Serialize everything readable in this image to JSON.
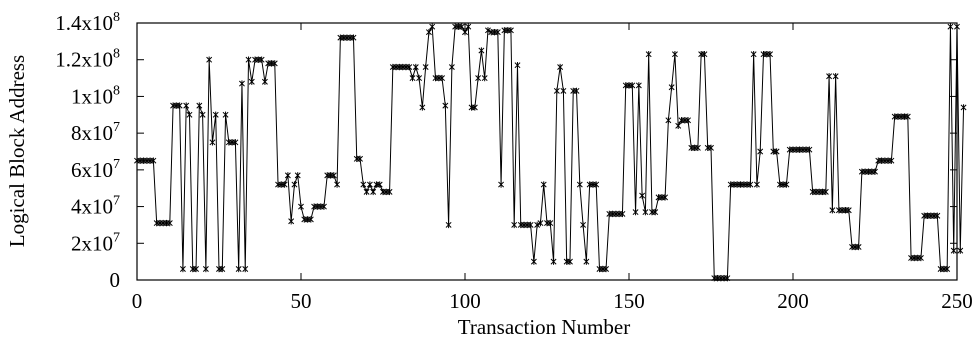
{
  "chart_data": {
    "type": "line",
    "title": "",
    "xlabel": "Transaction Number",
    "ylabel": "Logical Block Address",
    "xlim": [
      0,
      250
    ],
    "ylim": [
      0,
      140000000
    ],
    "grid": false,
    "legend": "none",
    "marker": "asterisk",
    "colors": {
      "line": "#000000",
      "marker": "#000000",
      "frame": "#000000"
    },
    "x_ticks": [
      {
        "value": 0,
        "label": "0"
      },
      {
        "value": 50,
        "label": "50"
      },
      {
        "value": 100,
        "label": "100"
      },
      {
        "value": 150,
        "label": "150"
      },
      {
        "value": 200,
        "label": "200"
      },
      {
        "value": 250,
        "label": "250"
      }
    ],
    "y_ticks": [
      {
        "value": 0,
        "label": "0",
        "base": "0",
        "exp": ""
      },
      {
        "value": 20000000,
        "label": "2x10^7",
        "base": "2x10",
        "exp": "7"
      },
      {
        "value": 40000000,
        "label": "4x10^7",
        "base": "4x10",
        "exp": "7"
      },
      {
        "value": 60000000,
        "label": "6x10^7",
        "base": "6x10",
        "exp": "7"
      },
      {
        "value": 80000000,
        "label": "8x10^7",
        "base": "8x10",
        "exp": "7"
      },
      {
        "value": 100000000,
        "label": "1x10^8",
        "base": "1x10",
        "exp": "8"
      },
      {
        "value": 120000000,
        "label": "1.2x10^8",
        "base": "1.2x10",
        "exp": "8"
      },
      {
        "value": 140000000,
        "label": "1.4x10^8",
        "base": "1.4x10",
        "exp": "8"
      }
    ],
    "series": [
      {
        "values": [
          65,
          65,
          65,
          65,
          65,
          65,
          31,
          31,
          31,
          31,
          31,
          95,
          95,
          95,
          6,
          95,
          90,
          6,
          6,
          95,
          90,
          6,
          120,
          75,
          90,
          6,
          6,
          90,
          75,
          75,
          75,
          6,
          107,
          6,
          120,
          108,
          120,
          120,
          120,
          108,
          118,
          118,
          118,
          52,
          52,
          52,
          57,
          32,
          52,
          57,
          40,
          33,
          33,
          33,
          40,
          40,
          40,
          40,
          57,
          57,
          57,
          52,
          132,
          132,
          132,
          132,
          132,
          66,
          66,
          52,
          48,
          52,
          48,
          52,
          52,
          48,
          48,
          48,
          116,
          116,
          116,
          116,
          116,
          116,
          110,
          116,
          110,
          94,
          116,
          135,
          138,
          110,
          110,
          110,
          95,
          30,
          116,
          138,
          138,
          138,
          135,
          138,
          94,
          94,
          110,
          125,
          110,
          136,
          135,
          135,
          135,
          52,
          136,
          136,
          136,
          30,
          117,
          30,
          30,
          30,
          30,
          10,
          30,
          31,
          52,
          31,
          31,
          10,
          103,
          116,
          103,
          10,
          10,
          103,
          103,
          52,
          30,
          10,
          52,
          52,
          52,
          6,
          6,
          6,
          36,
          36,
          36,
          36,
          36,
          106,
          106,
          106,
          37,
          106,
          46,
          37,
          123,
          37,
          37,
          45,
          45,
          45,
          87,
          105,
          123,
          84,
          87,
          87,
          87,
          72,
          72,
          72,
          123,
          123,
          72,
          72,
          1,
          1,
          1,
          1,
          1,
          52,
          52,
          52,
          52,
          52,
          52,
          52,
          123,
          52,
          70,
          123,
          123,
          123,
          70,
          70,
          52,
          52,
          52,
          71,
          71,
          71,
          71,
          71,
          71,
          71,
          48,
          48,
          48,
          48,
          48,
          111,
          38,
          111,
          38,
          38,
          38,
          38,
          18,
          18,
          18,
          59,
          59,
          59,
          59,
          59,
          65,
          65,
          65,
          65,
          65,
          89,
          89,
          89,
          89,
          89,
          12,
          12,
          12,
          12,
          35,
          35,
          35,
          35,
          35,
          6,
          6,
          6,
          138,
          16,
          138,
          16,
          94
        ],
        "scale": 1000000
      }
    ]
  }
}
